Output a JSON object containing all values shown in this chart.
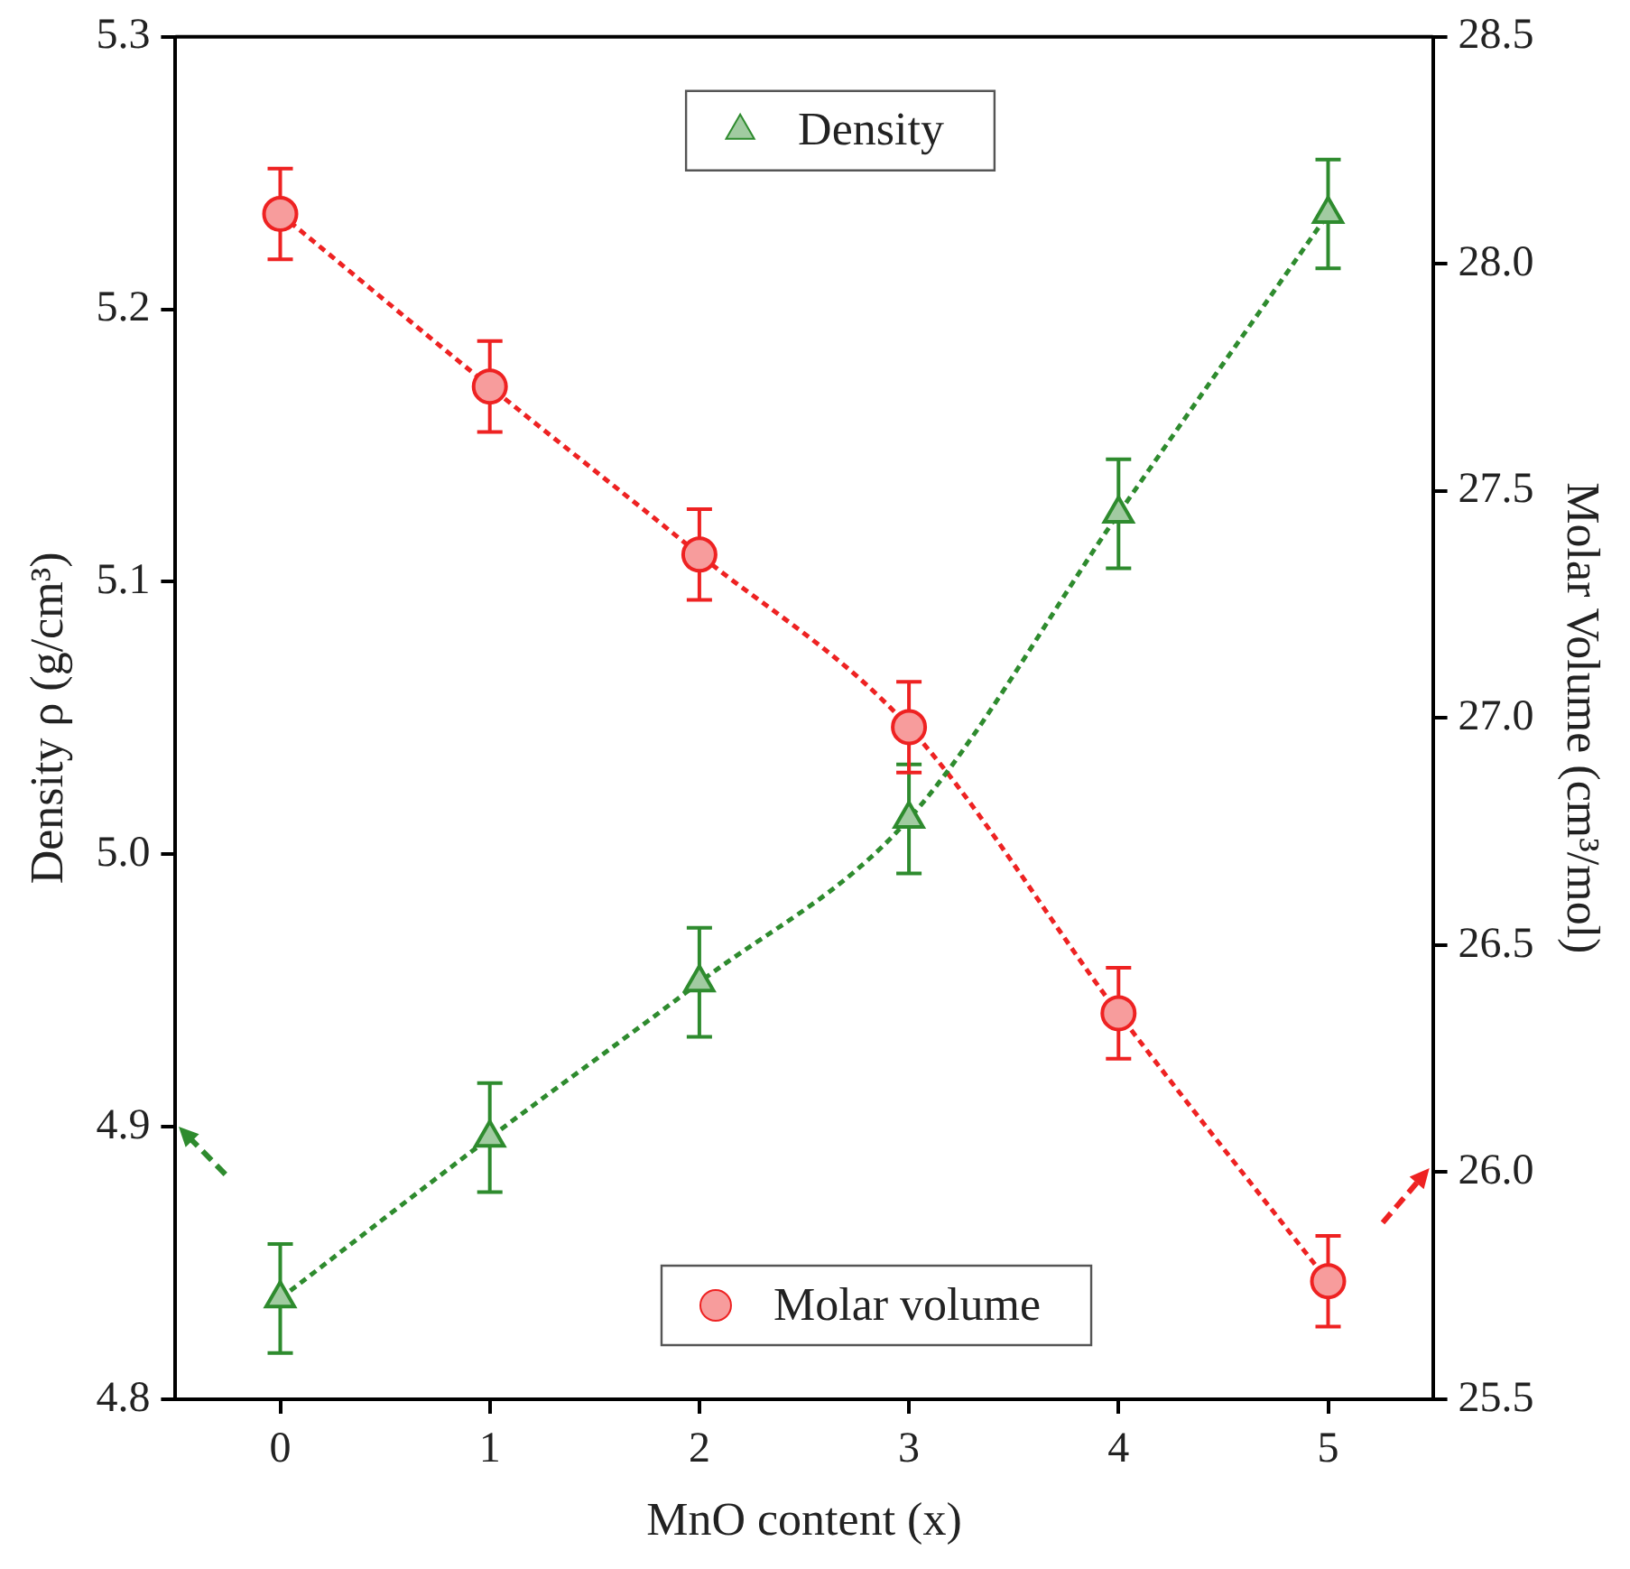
{
  "chart_data": {
    "type": "scatter",
    "xlabel": "MnO content (x)",
    "ylabel": "Density ρ (g/cm³)",
    "y2label": "Molar Volume (cm³/mol)",
    "xlim": [
      -0.5,
      5.5
    ],
    "xticks": [
      0,
      1,
      2,
      3,
      4,
      5
    ],
    "ylim": [
      4.8,
      5.3
    ],
    "yticks": [
      4.8,
      4.9,
      {
        "value": 5,
        "label": "5.0"
      },
      5.1,
      5.2,
      5.3
    ],
    "y2lim": [
      25.5,
      28.5
    ],
    "y2ticks": [
      25.5,
      {
        "value": 26,
        "label": "26.0"
      },
      26.5,
      {
        "value": 27,
        "label": "27.0"
      },
      27.5,
      {
        "value": 28,
        "label": "28.0"
      },
      28.5
    ],
    "x": [
      0,
      1,
      2,
      3,
      4,
      5
    ],
    "series": [
      {
        "name": "Density",
        "type": "line",
        "line_style": "dotted",
        "marker": "triangle",
        "color": "#2e8b2e",
        "values": [
          4.837,
          4.896,
          4.953,
          5.013,
          5.125,
          5.235
        ],
        "errors": [
          0.02,
          0.02,
          0.02,
          0.02,
          0.02,
          0.02
        ]
      },
      {
        "name": "Molar volume",
        "type": "line",
        "line_style": "dotted",
        "marker": "circle",
        "axis": "y2",
        "color": "#ee2222",
        "values": [
          28.11,
          27.73,
          27.36,
          26.98,
          26.35,
          25.76
        ],
        "errors": [
          0.1,
          0.1,
          0.1,
          0.1,
          0.1,
          0.1
        ]
      }
    ],
    "grid": false,
    "legend": "top"
  }
}
